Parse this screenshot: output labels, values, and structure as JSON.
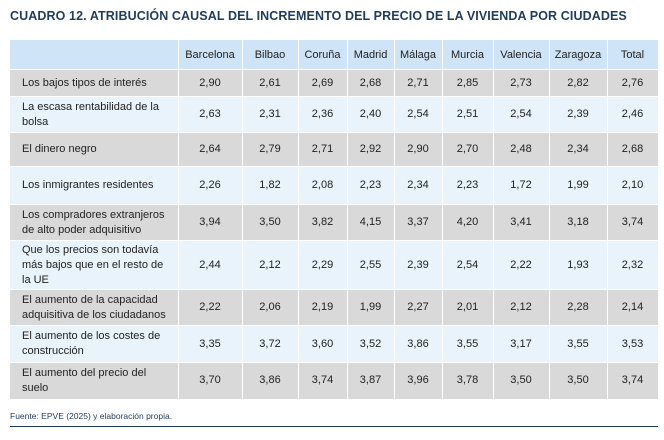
{
  "title": "CUADRO 12. ATRIBUCIÓN CAUSAL DEL INCREMENTO DEL PRECIO DE LA VIVIENDA POR CIUDADES",
  "columns": [
    "",
    "Barcelona",
    "Bilbao",
    "Coruña",
    "Madrid",
    "Málaga",
    "Murcia",
    "Valencia",
    "Zaragoza",
    "Total"
  ],
  "rows": [
    {
      "label": "Los bajos tipos de interés",
      "values": [
        "2,90",
        "2,61",
        "2,69",
        "2,68",
        "2,71",
        "2,85",
        "2,73",
        "2,82",
        "2,76"
      ]
    },
    {
      "label": "La escasa rentabilidad de la bolsa",
      "values": [
        "2,63",
        "2,31",
        "2,36",
        "2,40",
        "2,54",
        "2,51",
        "2,54",
        "2,39",
        "2,46"
      ]
    },
    {
      "label": "El dinero negro",
      "values": [
        "2,64",
        "2,79",
        "2,71",
        "2,92",
        "2,90",
        "2,70",
        "2,48",
        "2,34",
        "2,68"
      ]
    },
    {
      "label": "Los inmigrantes residentes",
      "values": [
        "2,26",
        "1,82",
        "2,08",
        "2,23",
        "2,34",
        "2,23",
        "1,72",
        "1,99",
        "2,10"
      ]
    },
    {
      "label": "Los compradores extranjeros de alto poder adquisitivo",
      "values": [
        "3,94",
        "3,50",
        "3,82",
        "4,15",
        "3,37",
        "4,20",
        "3,41",
        "3,18",
        "3,74"
      ]
    },
    {
      "label": "Que los precios son todavía más bajos que en el resto de la UE",
      "values": [
        "2,44",
        "2,12",
        "2,29",
        "2,55",
        "2,39",
        "2,54",
        "2,22",
        "1,93",
        "2,32"
      ]
    },
    {
      "label": "El aumento de la capacidad adquisitiva de los ciudadanos",
      "values": [
        "2,22",
        "2,06",
        "2,19",
        "1,99",
        "2,27",
        "2,01",
        "2,12",
        "2,28",
        "2,14"
      ]
    },
    {
      "label": "El aumento de los costes de construcción",
      "values": [
        "3,35",
        "3,72",
        "3,60",
        "3,52",
        "3,86",
        "3,55",
        "3,17",
        "3,55",
        "3,53"
      ]
    },
    {
      "label": "El aumento del precio del suelo",
      "values": [
        "3,70",
        "3,86",
        "3,74",
        "3,87",
        "3,96",
        "3,78",
        "3,50",
        "3,50",
        "3,74"
      ]
    }
  ],
  "source": "Fuente: EPVE (2025) y elaboración propia."
}
